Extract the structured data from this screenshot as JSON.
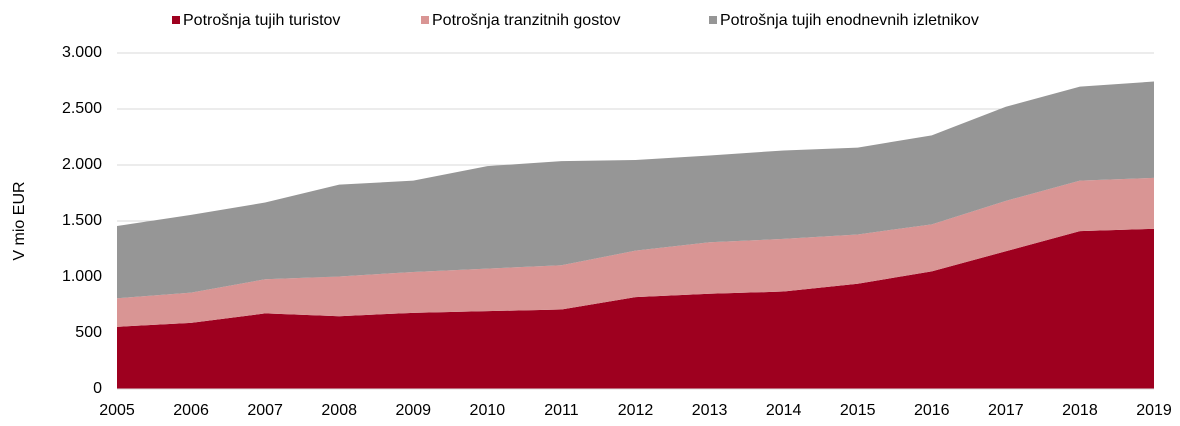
{
  "chart_data": {
    "type": "stacked_area",
    "ylabel": "V mio EUR",
    "categories": [
      "2005",
      "2006",
      "2007",
      "2008",
      "2009",
      "2010",
      "2011",
      "2012",
      "2013",
      "2014",
      "2015",
      "2016",
      "2017",
      "2018",
      "2019"
    ],
    "series": [
      {
        "name": "Potrošnja tujih turistov",
        "color": "#9e001f",
        "values": [
          555,
          590,
          675,
          650,
          680,
          695,
          710,
          820,
          850,
          870,
          940,
          1050,
          1230,
          1410,
          1430
        ]
      },
      {
        "name": "Potrošnja tranzitnih gostov",
        "color": "#d99594",
        "values": [
          255,
          270,
          305,
          355,
          365,
          380,
          395,
          415,
          460,
          470,
          440,
          420,
          450,
          450,
          455
        ]
      },
      {
        "name": "Potrošnja tujih enodnevnih izletnikov",
        "color": "#969696",
        "values": [
          645,
          695,
          685,
          820,
          815,
          915,
          930,
          810,
          775,
          790,
          775,
          795,
          840,
          840,
          860
        ]
      }
    ],
    "ylim": [
      0,
      3000
    ],
    "yticks": [
      0,
      500,
      {
        "value": 1000,
        "label": "1.000"
      },
      {
        "value": 1500,
        "label": "1.500"
      },
      {
        "value": 2000,
        "label": "2.000"
      },
      {
        "value": 2500,
        "label": "2.500"
      },
      {
        "value": 3000,
        "label": "3.000"
      }
    ],
    "grid": true
  }
}
